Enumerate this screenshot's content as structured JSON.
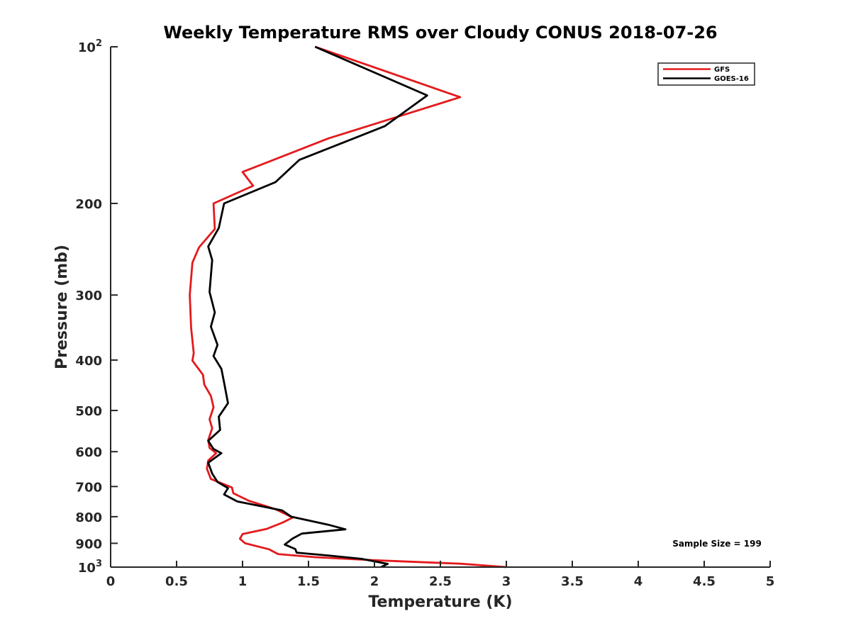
{
  "chart_data": {
    "type": "line",
    "title": "Weekly Temperature RMS over Cloudy CONUS 2018-07-26",
    "xlabel": "Temperature (K)",
    "ylabel": "Pressure (mb)",
    "xlim": [
      0,
      5
    ],
    "ylim": [
      100,
      1000
    ],
    "y_scale": "log",
    "y_reversed": true,
    "grid": false,
    "legend_position": "top-right",
    "x_ticks": [
      0,
      0.5,
      1,
      1.5,
      2,
      2.5,
      3,
      3.5,
      4,
      4.5,
      5
    ],
    "x_tick_labels": [
      "0",
      "0.5",
      "1",
      "1.5",
      "2",
      "2.5",
      "3",
      "3.5",
      "4",
      "4.5",
      "5"
    ],
    "y_ticks": [
      {
        "value": 100,
        "base": "10",
        "exp": "2",
        "label": ""
      },
      {
        "value": 200,
        "base": "",
        "exp": "",
        "label": "200"
      },
      {
        "value": 300,
        "base": "",
        "exp": "",
        "label": "300"
      },
      {
        "value": 400,
        "base": "",
        "exp": "",
        "label": "400"
      },
      {
        "value": 500,
        "base": "",
        "exp": "",
        "label": "500"
      },
      {
        "value": 600,
        "base": "",
        "exp": "",
        "label": "600"
      },
      {
        "value": 700,
        "base": "",
        "exp": "",
        "label": "700"
      },
      {
        "value": 800,
        "base": "",
        "exp": "",
        "label": "800"
      },
      {
        "value": 900,
        "base": "",
        "exp": "",
        "label": "900"
      },
      {
        "value": 1000,
        "base": "10",
        "exp": "3",
        "label": ""
      }
    ],
    "annotation": "Sample Size = 199",
    "series": [
      {
        "name": "GFS",
        "color": "#e31a1c",
        "points": [
          [
            1.55,
            100
          ],
          [
            2.65,
            125
          ],
          [
            1.65,
            150
          ],
          [
            1.0,
            174
          ],
          [
            1.08,
            185
          ],
          [
            0.78,
            200
          ],
          [
            0.79,
            224
          ],
          [
            0.67,
            243
          ],
          [
            0.62,
            260
          ],
          [
            0.6,
            300
          ],
          [
            0.61,
            347
          ],
          [
            0.63,
            388
          ],
          [
            0.62,
            401
          ],
          [
            0.7,
            427
          ],
          [
            0.71,
            446
          ],
          [
            0.76,
            469
          ],
          [
            0.78,
            493
          ],
          [
            0.75,
            520
          ],
          [
            0.77,
            541
          ],
          [
            0.74,
            570
          ],
          [
            0.75,
            590
          ],
          [
            0.8,
            604
          ],
          [
            0.74,
            624
          ],
          [
            0.73,
            647
          ],
          [
            0.76,
            677
          ],
          [
            0.92,
            703
          ],
          [
            0.93,
            721
          ],
          [
            1.05,
            746
          ],
          [
            1.25,
            774
          ],
          [
            1.38,
            803
          ],
          [
            1.3,
            822
          ],
          [
            1.18,
            845
          ],
          [
            1.0,
            864
          ],
          [
            0.98,
            882
          ],
          [
            1.02,
            900
          ],
          [
            1.2,
            924
          ],
          [
            1.27,
            944
          ],
          [
            1.55,
            957
          ],
          [
            2.0,
            970
          ],
          [
            2.65,
            985
          ],
          [
            3.0,
            1000
          ]
        ]
      },
      {
        "name": "GOES-16",
        "color": "#000000",
        "points": [
          [
            1.55,
            100
          ],
          [
            2.4,
            124
          ],
          [
            2.08,
            142
          ],
          [
            1.43,
            165
          ],
          [
            1.25,
            182
          ],
          [
            0.86,
            200
          ],
          [
            0.82,
            223
          ],
          [
            0.74,
            242
          ],
          [
            0.77,
            257
          ],
          [
            0.75,
            296
          ],
          [
            0.79,
            324
          ],
          [
            0.76,
            345
          ],
          [
            0.81,
            374
          ],
          [
            0.78,
            393
          ],
          [
            0.84,
            416
          ],
          [
            0.86,
            442
          ],
          [
            0.89,
            484
          ],
          [
            0.82,
            514
          ],
          [
            0.83,
            545
          ],
          [
            0.74,
            572
          ],
          [
            0.78,
            593
          ],
          [
            0.84,
            604
          ],
          [
            0.74,
            630
          ],
          [
            0.77,
            661
          ],
          [
            0.81,
            686
          ],
          [
            0.89,
            705
          ],
          [
            0.86,
            725
          ],
          [
            0.96,
            748
          ],
          [
            1.3,
            778
          ],
          [
            1.37,
            800
          ],
          [
            1.65,
            829
          ],
          [
            1.78,
            846
          ],
          [
            1.45,
            862
          ],
          [
            1.38,
            881
          ],
          [
            1.32,
            905
          ],
          [
            1.4,
            923
          ],
          [
            1.41,
            938
          ],
          [
            1.65,
            950
          ],
          [
            1.9,
            964
          ],
          [
            2.1,
            986
          ],
          [
            2.05,
            1000
          ]
        ]
      }
    ]
  }
}
